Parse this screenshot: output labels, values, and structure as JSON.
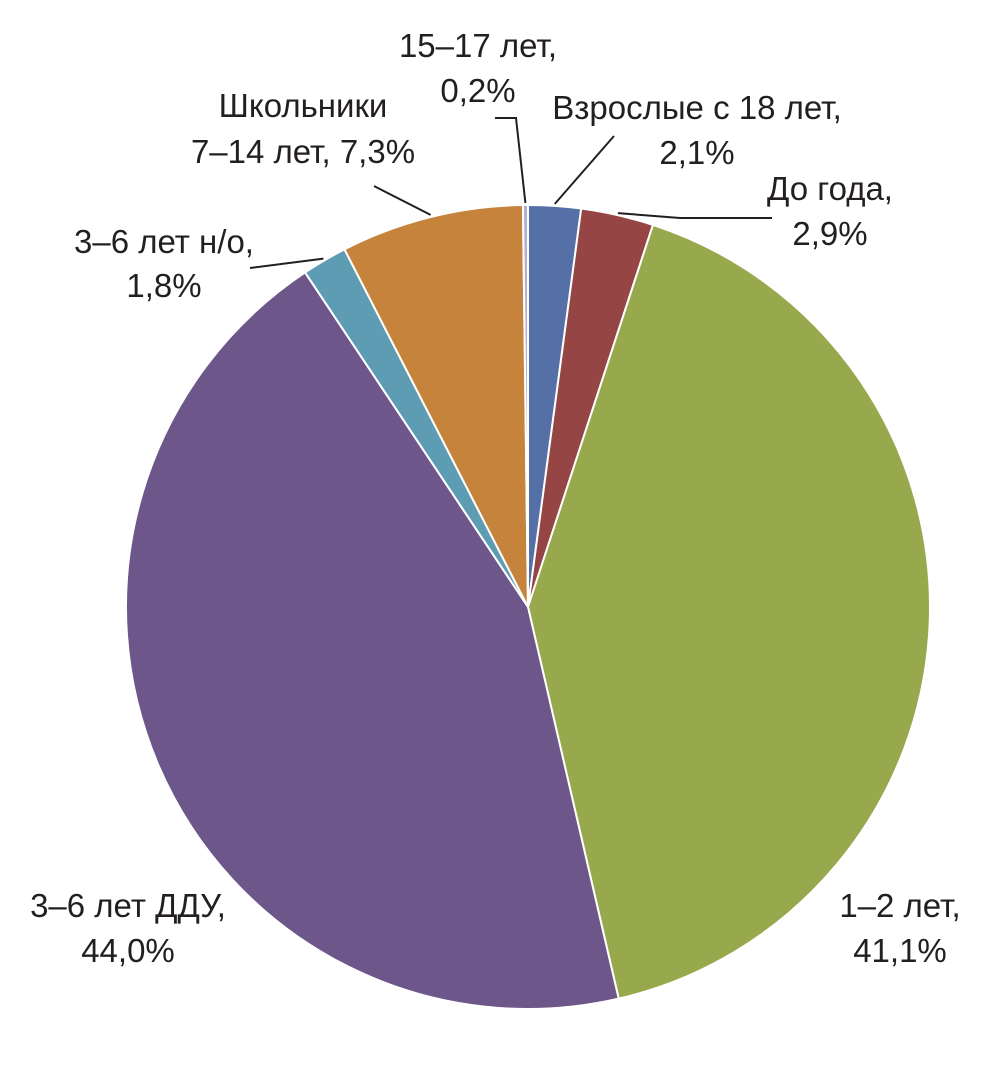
{
  "chart_data": {
    "type": "pie",
    "title": "",
    "slices": [
      {
        "name": "Взрослые с 18 лет",
        "value": 2.1,
        "label_line1": "Взрослые с 18 лет,",
        "label_line2": "2,1%",
        "color": "#5470a6"
      },
      {
        "name": "До года",
        "value": 2.9,
        "label_line1": "До года,",
        "label_line2": "2,9%",
        "color": "#944544"
      },
      {
        "name": "1–2 лет",
        "value": 41.1,
        "label_line1": "1–2 лет,",
        "label_line2": "41,1%",
        "color": "#98a84c"
      },
      {
        "name": "3–6 лет ДДУ",
        "value": 44.0,
        "label_line1": "3–6 лет ДДУ,",
        "label_line2": "44,0%",
        "color": "#6d568a"
      },
      {
        "name": "3–6 лет н/о",
        "value": 1.8,
        "label_line1": "3–6 лет н/о,",
        "label_line2": "1,8%",
        "color": "#5e9cb3"
      },
      {
        "name": "Школьники 7–14 лет",
        "value": 7.3,
        "label_line1": "Школьники",
        "label_line2": "7–14 лет, 7,3%",
        "color": "#c5833c"
      },
      {
        "name": "15–17 лет",
        "value": 0.2,
        "label_line1": "15–17 лет,",
        "label_line2": "0,2%",
        "color": "#b3b0cf"
      }
    ]
  }
}
